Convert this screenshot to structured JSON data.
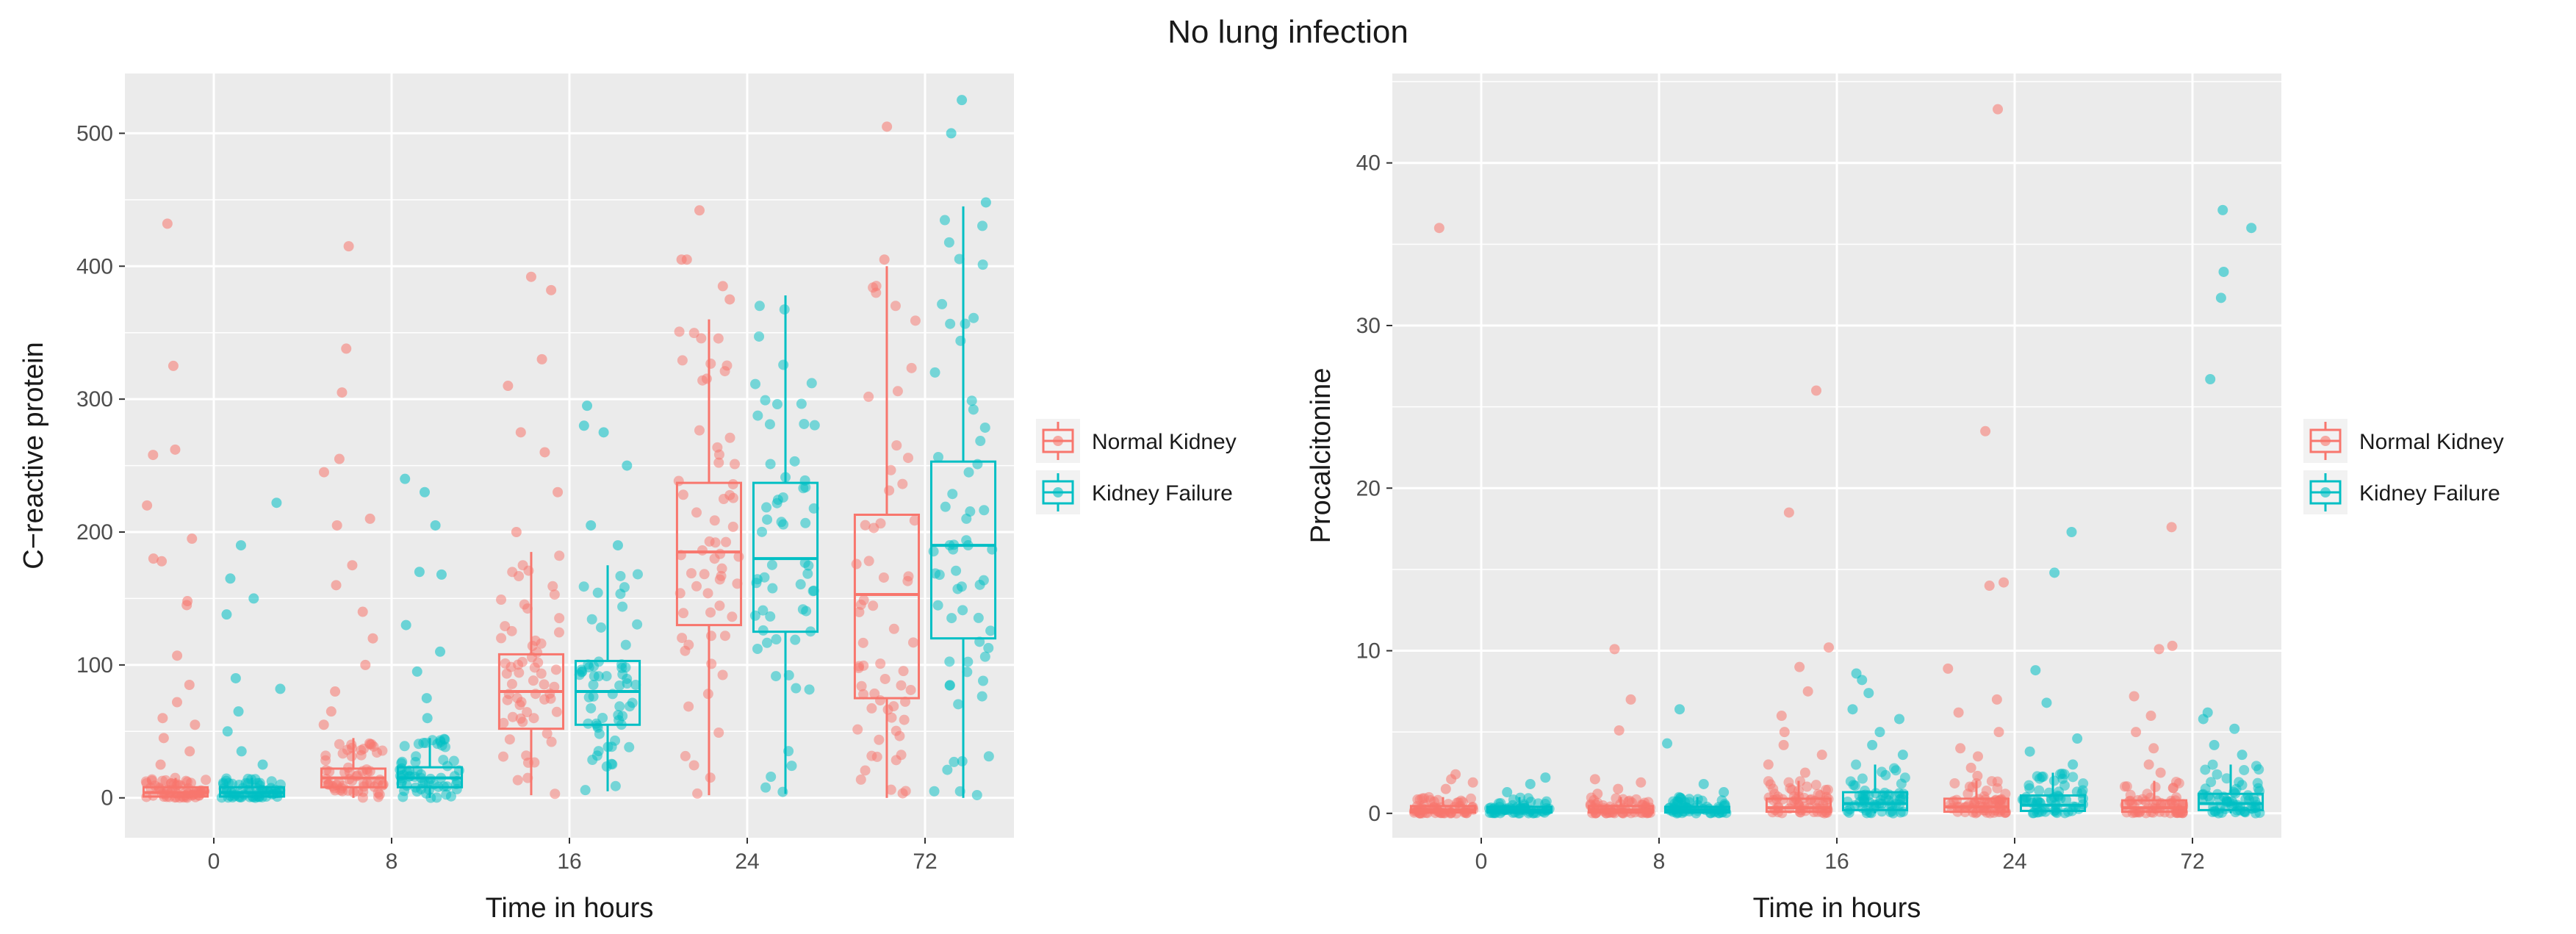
{
  "figure_title": "No lung infection",
  "colors": {
    "normal_kidney": "#F8766D",
    "kidney_failure": "#00BFC4",
    "panel_bg": "#EBEBEB",
    "grid": "#FFFFFF"
  },
  "chart_data": [
    {
      "type": "box+jitter",
      "title": "",
      "xlabel": "Time in hours",
      "ylabel": "C−reactive protein",
      "categories": [
        "0",
        "8",
        "16",
        "24",
        "72"
      ],
      "ylim": [
        -30,
        545
      ],
      "yticks": [
        0,
        100,
        200,
        300,
        400,
        500
      ],
      "legend": [
        "Normal Kidney",
        "Kidney Failure"
      ],
      "series": [
        {
          "name": "Normal Kidney",
          "boxes": [
            {
              "q1": 1,
              "median": 4,
              "q3": 8,
              "whisker_low": 0,
              "whisker_high": 15,
              "outliers": [
                25,
                35,
                45,
                55,
                60,
                72,
                85,
                107,
                148,
                145,
                178,
                180,
                195,
                220,
                258,
                262,
                325,
                432
              ]
            },
            {
              "q1": 8,
              "median": 15,
              "q3": 22,
              "whisker_low": 0,
              "whisker_high": 45,
              "outliers": [
                55,
                65,
                80,
                100,
                120,
                140,
                160,
                175,
                205,
                210,
                245,
                255,
                305,
                338,
                415
              ]
            },
            {
              "q1": 52,
              "median": 80,
              "q3": 108,
              "whisker_low": 2,
              "whisker_high": 185,
              "outliers": [
                200,
                230,
                260,
                275,
                310,
                330,
                382,
                392
              ]
            },
            {
              "q1": 130,
              "median": 185,
              "q3": 237,
              "whisker_low": 2,
              "whisker_high": 360,
              "outliers": [
                375,
                385,
                405,
                405,
                442
              ]
            },
            {
              "q1": 75,
              "median": 153,
              "q3": 213,
              "whisker_low": 0,
              "whisker_high": 400,
              "outliers": [
                405,
                505
              ]
            }
          ]
        },
        {
          "name": "Kidney Failure",
          "boxes": [
            {
              "q1": 1,
              "median": 4,
              "q3": 8,
              "whisker_low": 0,
              "whisker_high": 15,
              "outliers": [
                25,
                35,
                50,
                65,
                82,
                90,
                138,
                150,
                165,
                190,
                222
              ]
            },
            {
              "q1": 8,
              "median": 15,
              "q3": 23,
              "whisker_low": 0,
              "whisker_high": 45,
              "outliers": [
                60,
                75,
                95,
                110,
                130,
                168,
                170,
                205,
                230,
                240
              ]
            },
            {
              "q1": 55,
              "median": 80,
              "q3": 103,
              "whisker_low": 5,
              "whisker_high": 175,
              "outliers": [
                190,
                205,
                250,
                275,
                280,
                295
              ]
            },
            {
              "q1": 125,
              "median": 180,
              "q3": 237,
              "whisker_low": 3,
              "whisker_high": 378,
              "outliers": []
            },
            {
              "q1": 120,
              "median": 190,
              "q3": 253,
              "whisker_low": 0,
              "whisker_high": 445,
              "outliers": [
                448,
                500,
                525
              ]
            }
          ]
        }
      ]
    },
    {
      "type": "box+jitter",
      "title": "",
      "xlabel": "Time in hours",
      "ylabel": "Procalcitonine",
      "categories": [
        "0",
        "8",
        "16",
        "24",
        "72"
      ],
      "ylim": [
        -1.5,
        45.5
      ],
      "yticks": [
        0,
        10,
        20,
        30,
        40
      ],
      "legend": [
        "Normal Kidney",
        "Kidney Failure"
      ],
      "series": [
        {
          "name": "Normal Kidney",
          "boxes": [
            {
              "q1": 0.05,
              "median": 0.2,
              "q3": 0.45,
              "whisker_low": 0,
              "whisker_high": 1,
              "outliers": [
                1.5,
                1.9,
                2.1,
                2.4,
                36
              ]
            },
            {
              "q1": 0.05,
              "median": 0.2,
              "q3": 0.45,
              "whisker_low": 0,
              "whisker_high": 1,
              "outliers": [
                1.2,
                1.5,
                1.9,
                2.1,
                5.1,
                7,
                10.1
              ]
            },
            {
              "q1": 0.1,
              "median": 0.35,
              "q3": 0.9,
              "whisker_low": 0,
              "whisker_high": 2,
              "outliers": [
                2.5,
                3,
                3.6,
                4.2,
                5,
                6,
                7.5,
                9,
                10.2,
                18.5,
                26
              ]
            },
            {
              "q1": 0.1,
              "median": 0.4,
              "q3": 0.9,
              "whisker_low": 0,
              "whisker_high": 2,
              "outliers": [
                2.3,
                2.8,
                3.5,
                4,
                5,
                6.2,
                7,
                8.9,
                14,
                14.2,
                23.5,
                43.3
              ]
            },
            {
              "q1": 0.1,
              "median": 0.35,
              "q3": 0.8,
              "whisker_low": 0,
              "whisker_high": 2,
              "outliers": [
                2.5,
                3,
                4,
                5,
                6,
                7.2,
                10.1,
                10.3,
                17.6
              ]
            }
          ]
        },
        {
          "name": "Kidney Failure",
          "boxes": [
            {
              "q1": 0.05,
              "median": 0.2,
              "q3": 0.4,
              "whisker_low": 0,
              "whisker_high": 1,
              "outliers": [
                1.3,
                1.8,
                2.2
              ]
            },
            {
              "q1": 0.05,
              "median": 0.2,
              "q3": 0.4,
              "whisker_low": 0,
              "whisker_high": 1,
              "outliers": [
                1.3,
                1.8,
                4.3,
                6.4
              ]
            },
            {
              "q1": 0.2,
              "median": 0.6,
              "q3": 1.3,
              "whisker_low": 0,
              "whisker_high": 3,
              "outliers": [
                3.6,
                4.2,
                5,
                5.8,
                6.4,
                7.4,
                8.2,
                8.6
              ]
            },
            {
              "q1": 0.15,
              "median": 0.5,
              "q3": 1.1,
              "whisker_low": 0,
              "whisker_high": 2.5,
              "outliers": [
                3,
                3.8,
                4.6,
                6.8,
                8.8,
                14.8,
                17.3
              ]
            },
            {
              "q1": 0.2,
              "median": 0.6,
              "q3": 1.2,
              "whisker_low": 0,
              "whisker_high": 3,
              "outliers": [
                3.6,
                4.2,
                5.2,
                5.8,
                6.2,
                26.7,
                31.7,
                33.3,
                36,
                37.1
              ]
            }
          ]
        }
      ]
    }
  ]
}
